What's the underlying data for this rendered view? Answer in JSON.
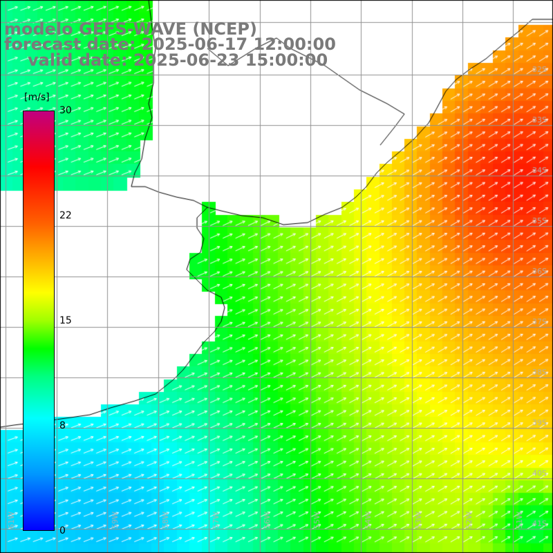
{
  "title": {
    "line1": "modelo GEFS-WAVE (NCEP)",
    "line2": "forecast date: 2025-06-17 12:00:00",
    "line3": "valid date: 2025-06-23 15:00:00"
  },
  "colorbar": {
    "unit": "[m/s]",
    "ticks": [
      "30",
      "22",
      "15",
      "8",
      "0"
    ],
    "tick_values": [
      30,
      22,
      15,
      8,
      0
    ],
    "min": 0,
    "max": 30,
    "stops": [
      {
        "v": 0,
        "c": "#0000ff"
      },
      {
        "v": 4,
        "c": "#0096ff"
      },
      {
        "v": 8,
        "c": "#00ffff"
      },
      {
        "v": 11,
        "c": "#00ff80"
      },
      {
        "v": 13,
        "c": "#00ff00"
      },
      {
        "v": 15,
        "c": "#a0ff00"
      },
      {
        "v": 17,
        "c": "#ffff00"
      },
      {
        "v": 20,
        "c": "#ffa000"
      },
      {
        "v": 22,
        "c": "#ff6000"
      },
      {
        "v": 26,
        "c": "#ff0000"
      },
      {
        "v": 30,
        "c": "#c00080"
      }
    ]
  },
  "map": {
    "lon_range": [
      -61,
      -50
    ],
    "lat_range": [
      -41.4,
      -31
    ],
    "lon_labels": [
      {
        "lon": -61,
        "text": "61W"
      },
      {
        "lon": -59,
        "text": "59W"
      },
      {
        "lon": -58,
        "text": "58W"
      },
      {
        "lon": -57,
        "text": "57W"
      },
      {
        "lon": -56,
        "text": "56W"
      },
      {
        "lon": -55,
        "text": "55W"
      },
      {
        "lon": -54,
        "text": "54W"
      },
      {
        "lon": -53,
        "text": "53W"
      },
      {
        "lon": -52,
        "text": "52W"
      },
      {
        "lon": -51,
        "text": "51W"
      }
    ],
    "lat_labels": [
      {
        "lat": -32,
        "text": "32S"
      },
      {
        "lat": -33,
        "text": "33S"
      },
      {
        "lat": -34,
        "text": "34S"
      },
      {
        "lat": -35,
        "text": "35S"
      },
      {
        "lat": -36,
        "text": "36S"
      },
      {
        "lat": -37,
        "text": "37S"
      },
      {
        "lat": -38,
        "text": "38S"
      },
      {
        "lat": -39,
        "text": "39S"
      },
      {
        "lat": -40,
        "text": "40S"
      },
      {
        "lat": -41,
        "text": "41S"
      }
    ],
    "colors": {
      "land": "#ffffff",
      "coast": "#000000",
      "grid": "#909090",
      "arrow": "#ffffff",
      "label": "#b0b0b0"
    }
  }
}
